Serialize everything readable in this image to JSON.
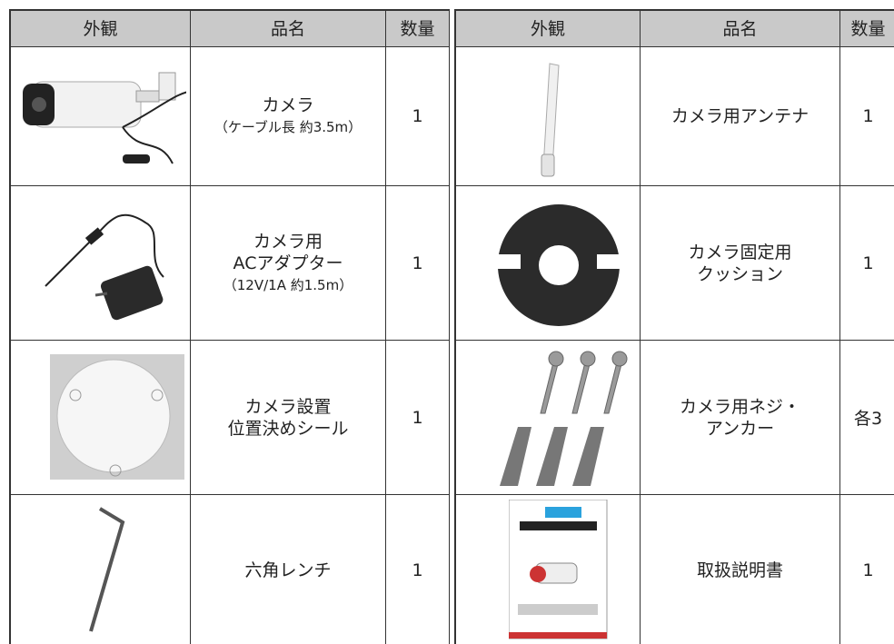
{
  "table": {
    "header": [
      "外観",
      "品名",
      "数量",
      "外観",
      "品名",
      "数量"
    ],
    "rows": [
      [
        [
          "カメラ",
          "（ケーブル長 約3.5m）"
        ],
        "1",
        [
          "カメラ用アンテナ"
        ],
        "1"
      ],
      [
        [
          "カメラ用",
          "ACアダプター",
          "（12V/1A 約1.5m）"
        ],
        "1",
        [
          "カメラ固定用",
          "クッション"
        ],
        "1"
      ],
      [
        [
          "カメラ設置",
          "位置決めシール"
        ],
        "1",
        [
          "カメラ用ネジ・",
          "アンカー"
        ],
        "各3"
      ],
      [
        [
          "六角レンチ"
        ],
        "1",
        [
          "取扱説明書"
        ],
        "1"
      ]
    ]
  }
}
